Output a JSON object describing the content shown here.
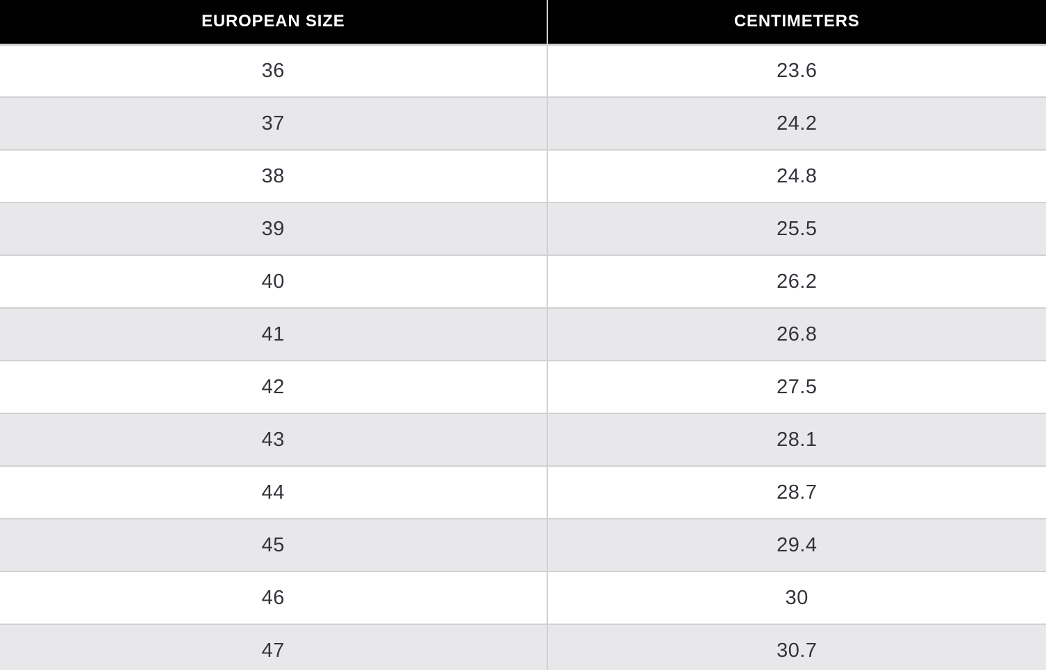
{
  "chart_data": {
    "type": "table",
    "columns": [
      "EUROPEAN SIZE",
      "CENTIMETERS"
    ],
    "rows": [
      {
        "european_size": "36",
        "centimeters": "23.6"
      },
      {
        "european_size": "37",
        "centimeters": "24.2"
      },
      {
        "european_size": "38",
        "centimeters": "24.8"
      },
      {
        "european_size": "39",
        "centimeters": "25.5"
      },
      {
        "european_size": "40",
        "centimeters": "26.2"
      },
      {
        "european_size": "41",
        "centimeters": "26.8"
      },
      {
        "european_size": "42",
        "centimeters": "27.5"
      },
      {
        "european_size": "43",
        "centimeters": "28.1"
      },
      {
        "european_size": "44",
        "centimeters": "28.7"
      },
      {
        "european_size": "45",
        "centimeters": "29.4"
      },
      {
        "european_size": "46",
        "centimeters": "30"
      },
      {
        "european_size": "47",
        "centimeters": "30.7"
      }
    ]
  },
  "colors": {
    "header_bg": "#010101",
    "header_text": "#ffffff",
    "row_bg": "#ffffff",
    "row_alt_bg": "#e8e7e9",
    "border": "#d1d1d3",
    "cell_text": "#34333b"
  }
}
